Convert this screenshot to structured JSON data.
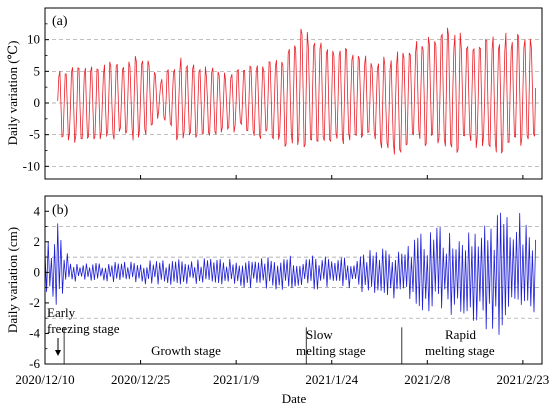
{
  "chart_data": [
    {
      "type": "line",
      "panel_label": "(a)",
      "ylabel": "Daily variation (℃)",
      "ylim": [
        -12,
        15
      ],
      "yticks": [
        -10,
        -5,
        0,
        5,
        10
      ],
      "grid": "horizontal dashed at y ticks",
      "series": [
        {
          "color": "#e8212a",
          "amplitude_envelope": [
            {
              "date": "2020-12-12",
              "high": 6,
              "low": -6
            },
            {
              "date": "2020-12-14",
              "high": 6,
              "low": -7
            },
            {
              "date": "2020-12-20",
              "high": 7,
              "low": -7
            },
            {
              "date": "2020-12-26",
              "high": 8,
              "low": -6
            },
            {
              "date": "2020-12-28",
              "high": 4,
              "low": -2
            },
            {
              "date": "2020-12-31",
              "high": 8,
              "low": -7
            },
            {
              "date": "2021-01-04",
              "high": 6,
              "low": -6
            },
            {
              "date": "2021-01-10",
              "high": 6,
              "low": -5
            },
            {
              "date": "2021-01-15",
              "high": 8,
              "low": -7
            },
            {
              "date": "2021-01-18",
              "high": 10,
              "low": -8
            },
            {
              "date": "2021-01-19",
              "high": 13,
              "low": -8
            },
            {
              "date": "2021-01-25",
              "high": 10,
              "low": -8
            },
            {
              "date": "2021-01-30",
              "high": 8,
              "low": -6
            },
            {
              "date": "2021-02-02",
              "high": 8,
              "low": -10
            },
            {
              "date": "2021-02-06",
              "high": 11,
              "low": -7
            },
            {
              "date": "2021-02-11",
              "high": 13,
              "low": -9
            },
            {
              "date": "2021-02-15",
              "high": 11,
              "low": -8
            },
            {
              "date": "2021-02-19",
              "high": 12,
              "low": -10
            },
            {
              "date": "2021-02-24",
              "high": 12,
              "low": -7
            }
          ]
        }
      ]
    },
    {
      "type": "line",
      "panel_label": "(b)",
      "xlabel": "Date",
      "ylabel": "Daily variation (cm)",
      "ylim": [
        -6,
        5
      ],
      "yticks": [
        -6,
        -4,
        -2,
        0,
        2,
        4
      ],
      "grid": "horizontal dashed at -3, -1, 1, 3",
      "xticks": [
        "2020/12/10",
        "2020/12/25",
        "2021/1/9",
        "2021/1/24",
        "2021/2/8",
        "2021/2/23"
      ],
      "xlim": [
        "2020-12-10",
        "2021-02-26"
      ],
      "series": [
        {
          "color": "#1f1fd6",
          "amplitude_envelope": [
            {
              "date": "2020-12-10",
              "high": 1.5,
              "low": -1.5
            },
            {
              "date": "2020-12-12",
              "high": 3.5,
              "low": -2.5
            },
            {
              "date": "2020-12-14",
              "high": 0.6,
              "low": -0.6
            },
            {
              "date": "2021-01-01",
              "high": 0.9,
              "low": -0.9
            },
            {
              "date": "2021-01-20",
              "high": 1.2,
              "low": -1.2
            },
            {
              "date": "2021-01-26",
              "high": 1.0,
              "low": -1.0
            },
            {
              "date": "2021-02-02",
              "high": 1.8,
              "low": -1.8
            },
            {
              "date": "2021-02-08",
              "high": 2.8,
              "low": -2.8
            },
            {
              "date": "2021-02-14",
              "high": 3.5,
              "low": -3.5
            },
            {
              "date": "2021-02-19",
              "high": 4.0,
              "low": -4.5
            },
            {
              "date": "2021-02-24",
              "high": 4.0,
              "low": -3.5
            }
          ]
        }
      ],
      "stages": [
        {
          "label_lines": [
            "Early",
            "freezing stage"
          ],
          "start": "2020-12-10",
          "end": "2020-12-13",
          "arrow": true
        },
        {
          "label_lines": [
            "Growth stage"
          ],
          "start": "2020-12-13",
          "end": "2021-01-20"
        },
        {
          "label_lines": [
            "Slow",
            "melting stage"
          ],
          "start": "2021-01-20",
          "end": "2021-02-04"
        },
        {
          "label_lines": [
            "Rapid",
            "melting stage"
          ],
          "start": "2021-02-04",
          "end": "2021-02-26"
        }
      ]
    }
  ]
}
